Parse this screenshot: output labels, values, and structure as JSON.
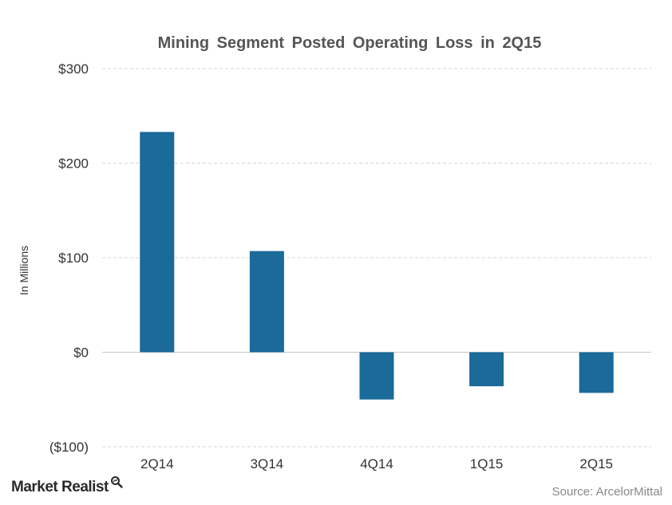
{
  "chart_data": {
    "type": "bar",
    "title": "Mining  Segment  Posted  Operating  Loss  in  2Q15",
    "categories": [
      "2Q14",
      "3Q14",
      "4Q14",
      "1Q15",
      "2Q15"
    ],
    "values": [
      233,
      107,
      -50,
      -36,
      -43
    ],
    "ylabel": "In Millions",
    "xlabel": "",
    "ylim": [
      -100,
      300
    ],
    "yticks": [
      300,
      200,
      100,
      0,
      -100
    ],
    "ytick_labels": [
      "$300",
      "$200",
      "$100",
      "$0",
      "($100)"
    ],
    "grid": true,
    "bar_color": "#1a6a9a"
  },
  "footer": {
    "brand": "Market Realist",
    "brand_icon": "magnifier-icon",
    "source": "Source:  ArcelorMittal"
  }
}
